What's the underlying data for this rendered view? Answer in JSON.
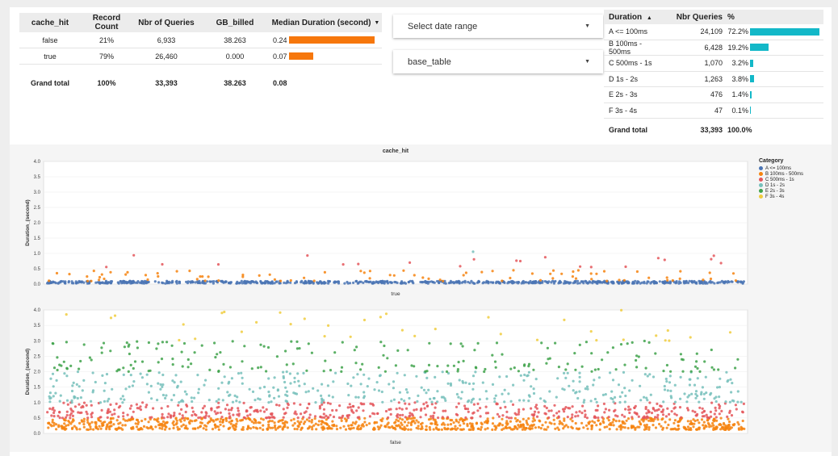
{
  "query_table": {
    "headers": [
      "cache_hit",
      "Record Count",
      "Nbr of Queries",
      "GB_billed",
      "Median Duration (second)"
    ],
    "rows": [
      {
        "cache_hit": "false",
        "record_count": "21%",
        "nbr_queries": "6,933",
        "gb_billed": "38.263",
        "median": "0.24",
        "median_frac": 1.0
      },
      {
        "cache_hit": "true",
        "record_count": "79%",
        "nbr_queries": "26,460",
        "gb_billed": "0.000",
        "median": "0.07",
        "median_frac": 0.29
      }
    ],
    "total": {
      "label": "Grand total",
      "record_count": "100%",
      "nbr_queries": "33,393",
      "gb_billed": "38.263",
      "median": "0.08"
    }
  },
  "controls": {
    "date_range": "Select date range",
    "table_select": "base_table"
  },
  "duration_table": {
    "headers": [
      "Duration",
      "Nbr Queries",
      "%"
    ],
    "rows": [
      {
        "label": "A <= 100ms",
        "count": "24,109",
        "pct": "72.2%",
        "frac": 0.722
      },
      {
        "label": "B 100ms - 500ms",
        "count": "6,428",
        "pct": "19.2%",
        "frac": 0.192
      },
      {
        "label": "C 500ms - 1s",
        "count": "1,070",
        "pct": "3.2%",
        "frac": 0.032
      },
      {
        "label": "D 1s - 2s",
        "count": "1,263",
        "pct": "3.8%",
        "frac": 0.038
      },
      {
        "label": "E 2s - 3s",
        "count": "476",
        "pct": "1.4%",
        "frac": 0.014
      },
      {
        "label": "F 3s - 4s",
        "count": "47",
        "pct": "0.1%",
        "frac": 0.001
      }
    ],
    "total": {
      "label": "Grand total",
      "count": "33,393",
      "pct": "100.0%"
    }
  },
  "chart_data": {
    "type": "scatter",
    "title": "cache_hit",
    "ylabel": "Duration_(second)",
    "ylim": [
      0,
      4
    ],
    "yticks": [
      "0.0",
      "0.5",
      "1.0",
      "1.5",
      "2.0",
      "2.5",
      "3.0",
      "3.5",
      "4.0"
    ],
    "legend_title": "Category",
    "legend_position": "top-right",
    "categories": [
      {
        "name": "A <= 100ms",
        "color": "#4a74b4"
      },
      {
        "name": "B 100ms - 500ms",
        "color": "#f6830e"
      },
      {
        "name": "C 500ms - 1s",
        "color": "#e4565a"
      },
      {
        "name": "D 1s - 2s",
        "color": "#76c0bb"
      },
      {
        "name": "E 2s - 3s",
        "color": "#3ea24a"
      },
      {
        "name": "F 3s - 4s",
        "color": "#f0cc3e"
      }
    ],
    "panels": [
      {
        "label": "true",
        "bands": [
          {
            "category": 0,
            "y_min": 0.02,
            "y_max": 0.1,
            "density": 1.0
          },
          {
            "category": 1,
            "y_min": 0.1,
            "y_max": 0.45,
            "density": 0.12
          },
          {
            "category": 2,
            "y_min": 0.55,
            "y_max": 0.95,
            "density": 0.03
          },
          {
            "category": 3,
            "y_min": 1.05,
            "y_max": 1.35,
            "density": 0.002
          }
        ]
      },
      {
        "label": "false",
        "bands": [
          {
            "category": 1,
            "y_min": 0.12,
            "y_max": 0.5,
            "density": 1.0
          },
          {
            "category": 2,
            "y_min": 0.5,
            "y_max": 1.0,
            "density": 0.55
          },
          {
            "category": 3,
            "y_min": 1.0,
            "y_max": 2.0,
            "density": 0.45
          },
          {
            "category": 4,
            "y_min": 2.0,
            "y_max": 3.0,
            "density": 0.22
          },
          {
            "category": 5,
            "y_min": 3.0,
            "y_max": 4.0,
            "density": 0.04
          }
        ]
      }
    ]
  }
}
